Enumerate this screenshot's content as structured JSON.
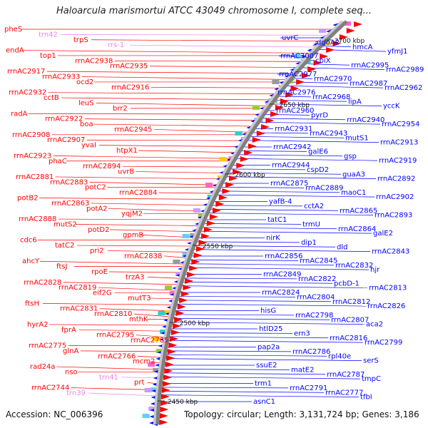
{
  "title": "Haloarcula marismortui ATCC 43049 chromosome I, complete seq...",
  "footer": {
    "accession": "Accession: NC_006396",
    "meta": "Topology: circular; Length: 3,131,724 bp; Genes: 3,186"
  },
  "colors": {
    "forward": "#ff0000",
    "reverse": "#0000ff",
    "rna": "#ee82ee",
    "backbone": "#808080",
    "tick": "#2e8b57"
  },
  "ticks": [
    "2700 kbp",
    "2650 kbp",
    "2600 kbp",
    "2550 kbp",
    "2500 kbp",
    "2450 kbp"
  ],
  "left_labels": [
    "pheS",
    "trn42",
    "trpS",
    "rrs-1",
    "endA",
    "top1",
    "rrnAC2938",
    "rrnAC2935",
    "rrnAC2917",
    "rrnAC2933",
    "ocd2",
    "rrnAC2916",
    "rrnAC2932",
    "cctB",
    "leuS",
    "brr2",
    "radA",
    "rrnAC2922",
    "boa",
    "rrnAC2945",
    "rrnAC2908",
    "rrnAC2907",
    "yvaI",
    "htpX1",
    "rrnAC2923",
    "phaC",
    "rrnAC2894",
    "uvrB",
    "rrnAC2881",
    "rrnAC2883",
    "potC2",
    "rrnAC2884",
    "potB2",
    "rrnAC2863",
    "potA2",
    "yqjM2",
    "rrnAC2888",
    "mutS2",
    "potD2",
    "gpmB",
    "cdc6",
    "tatC2",
    "pri2",
    "rrnAC2838",
    "ahcY",
    "ftsJ",
    "rpoE",
    "trzA3",
    "rrnAC2828",
    "rrnAC2819",
    "eif2G",
    "mutT3",
    "ftsH",
    "rrnAC2831",
    "rrnAC2810",
    "mthK",
    "hyrA2",
    "fprA",
    "rrnAC2795",
    "rrnAC2785",
    "rrnAC2775",
    "glnA",
    "rrnAC2766",
    "mcm2",
    "rad24a",
    "nso",
    "trn41",
    "prt",
    "rrnAC2744",
    "trn39"
  ],
  "right_labels": [
    "uvrC",
    "dgoA2",
    "hmcA",
    "yfmJ1",
    "rrnAC3007",
    "cbiX",
    "rrnAC2995",
    "rrnAC2989",
    "rrnAC2977",
    "rrnAC2970",
    "rrnAC2987",
    "rrnAC2962",
    "rrnAC2976",
    "rrnAC2968",
    "lipA",
    "yccK",
    "rrnAC2960",
    "pyrD",
    "rrnAC2940",
    "rrnAC2954",
    "rrnAC2931",
    "rrnAC2943",
    "mutS1",
    "rrnAC2913",
    "rrnAC2942",
    "galE6",
    "gsp",
    "rrnAC2919",
    "rrnAC2944",
    "cspD2",
    "guaA3",
    "rrnAC2892",
    "rrnAC2875",
    "rrnAC2889",
    "maoC1",
    "rrnAC2902",
    "yafB-4",
    "cctA2",
    "rrnAC2865",
    "rrnAC2893",
    "tatC1",
    "trmU",
    "rrnAC2864",
    "galE2",
    "nirK",
    "dip1",
    "dld",
    "rrnAC2843",
    "rrnAC2856",
    "rrnAC2845",
    "rrnAC2832",
    "hjr",
    "rrnAC2849",
    "rrnAC2822",
    "pcbD-1",
    "rrnAC2813",
    "rrnAC2824",
    "rrnAC2804",
    "rrnAC2812",
    "rrnAC2826",
    "hisG",
    "rrnAC2798",
    "rrnAC2807",
    "aca2",
    "htlD25",
    "ern3",
    "rrnAC2816",
    "rrnAC2799",
    "pap2a",
    "rrnAC2786",
    "rpl40e",
    "serS",
    "ssuE2",
    "matE2",
    "rrnAC2787",
    "tmpC",
    "trm1",
    "rrnAC2791",
    "rrnAC2777",
    "tfbI",
    "asnC1"
  ]
}
